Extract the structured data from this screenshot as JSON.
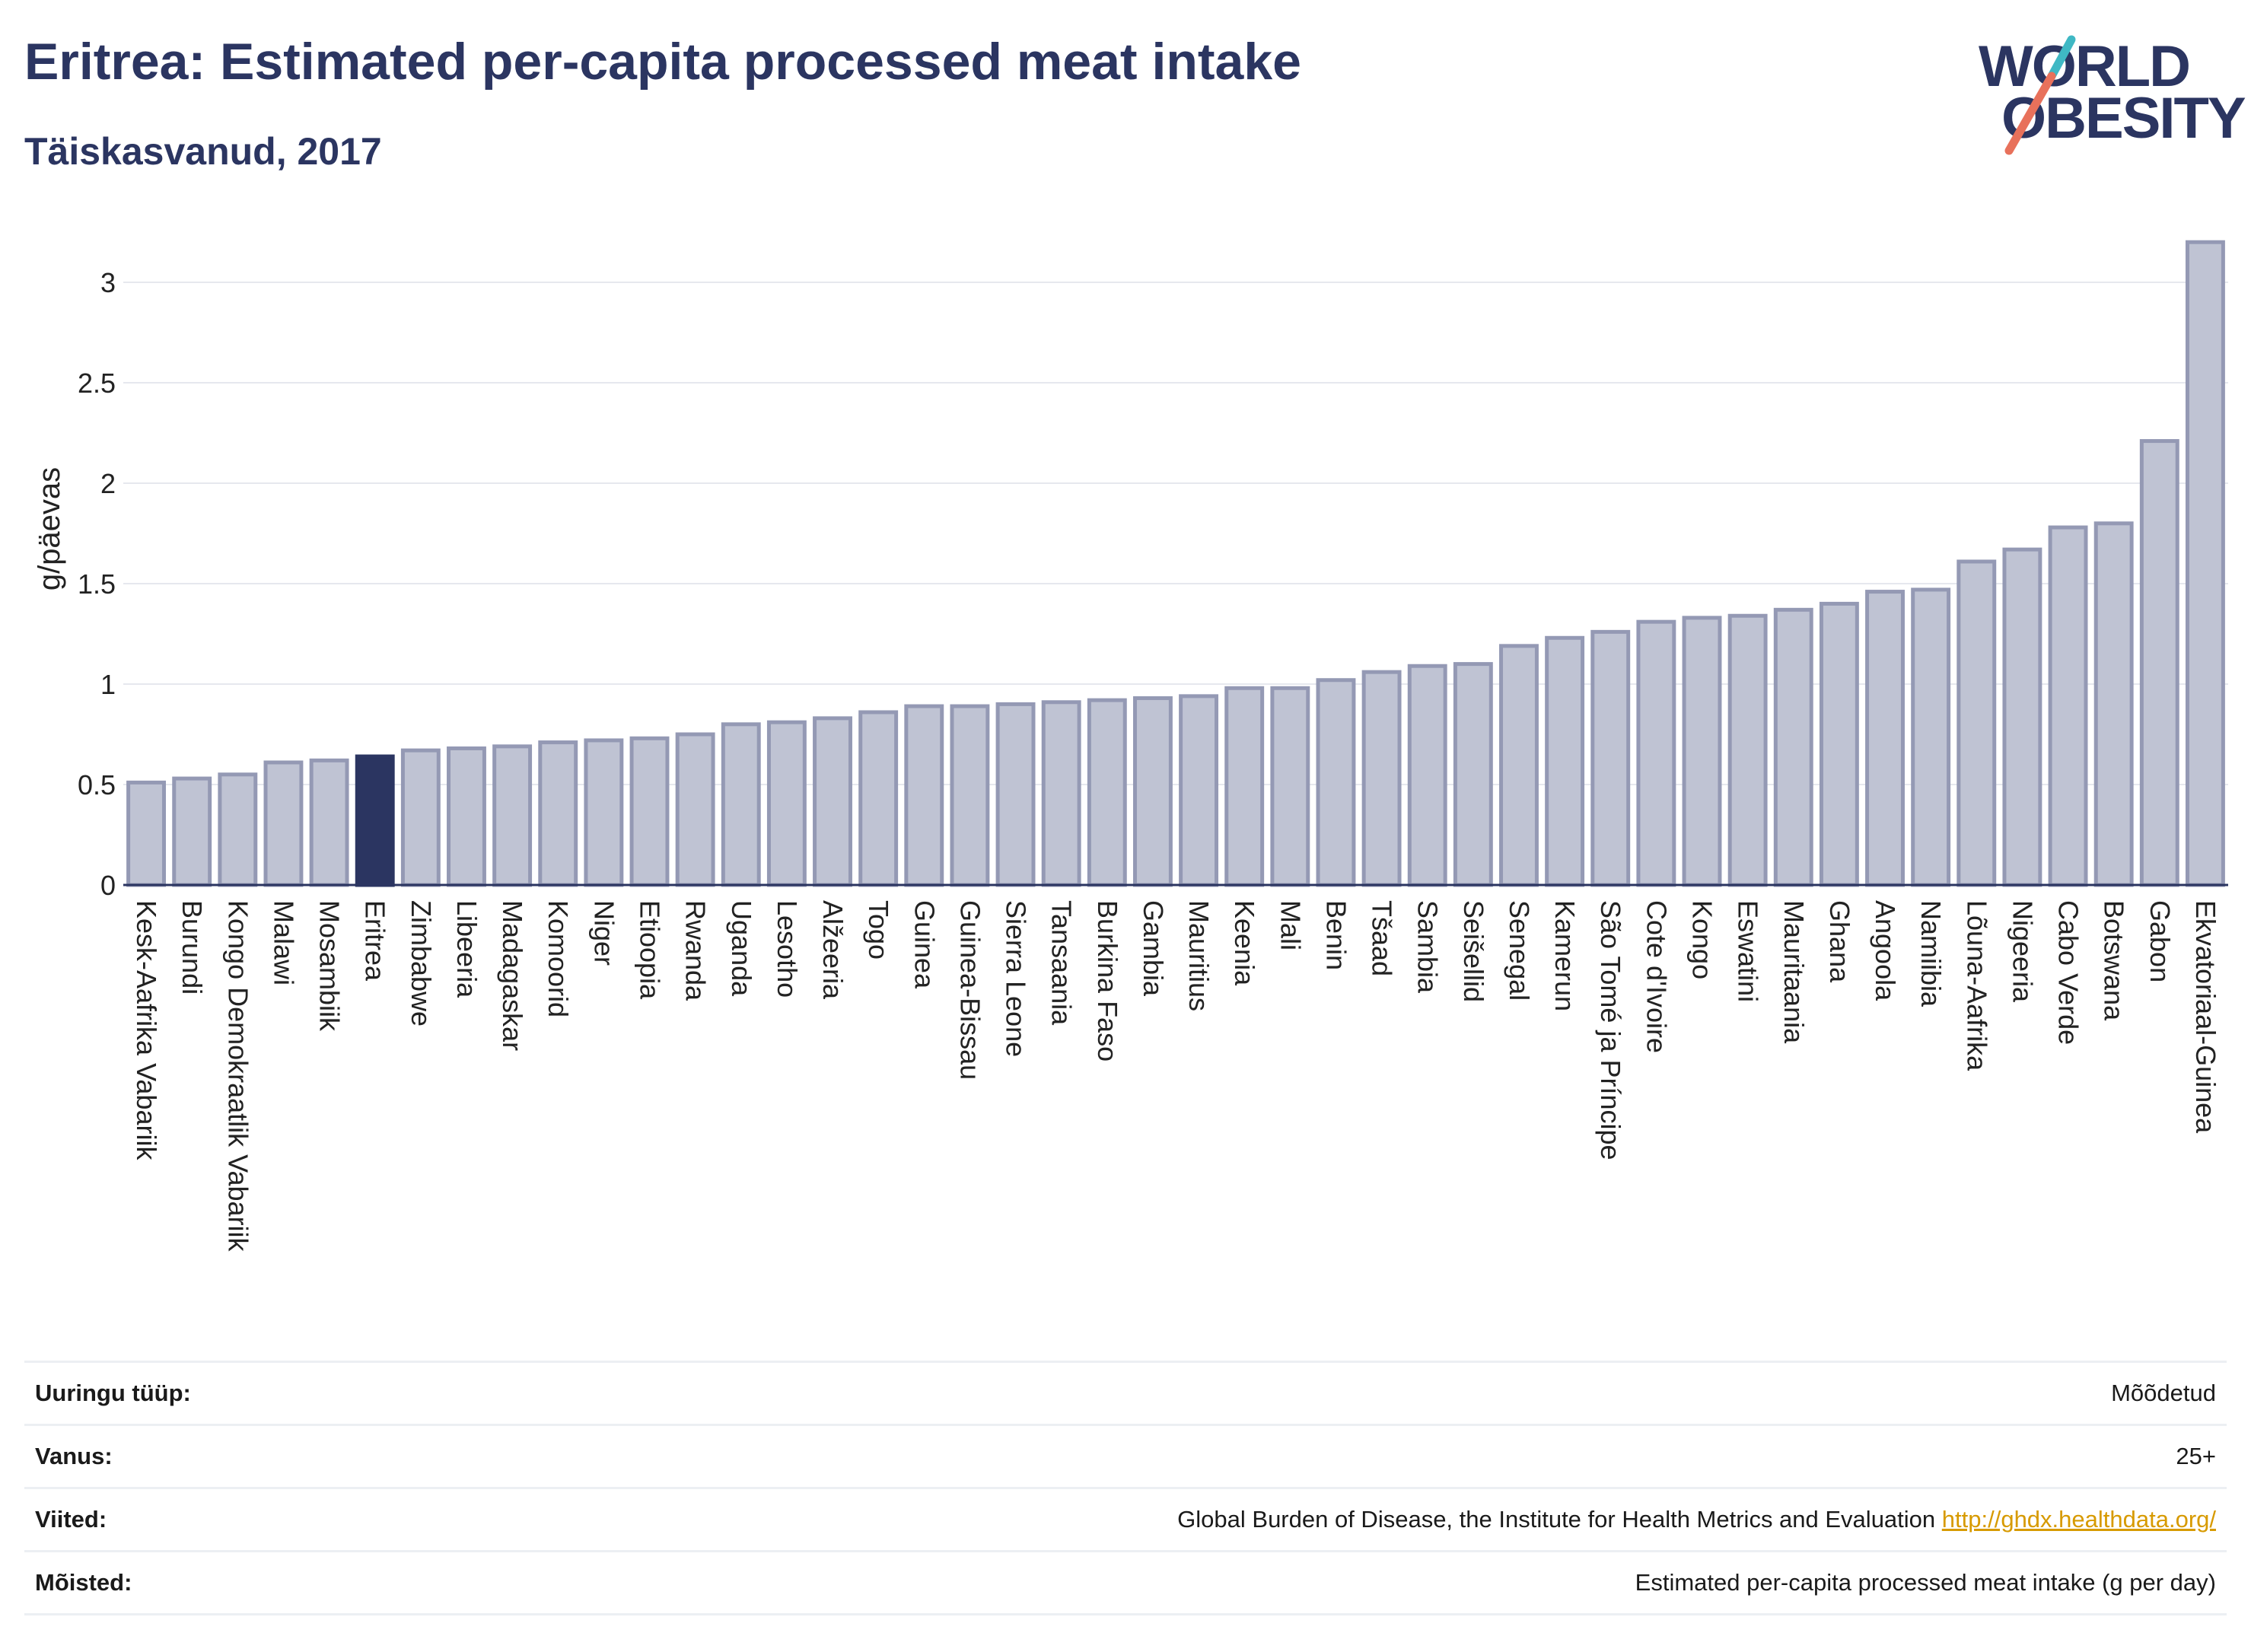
{
  "header": {
    "title": "Eritrea: Estimated per-capita processed meat intake",
    "subtitle": "Täiskasvanud, 2017"
  },
  "logo": {
    "line1": "WORLD",
    "line2": "OBESITY",
    "slash_colors": [
      "#e8715b",
      "#3fb8c4"
    ]
  },
  "chart_data": {
    "type": "bar",
    "title": "Eritrea: Estimated per-capita processed meat intake",
    "subtitle": "Täiskasvanud, 2017",
    "ylabel": "g/päevas",
    "ylim": [
      0,
      3.3
    ],
    "yticks": [
      0,
      0.5,
      1,
      1.5,
      2,
      2.5,
      3
    ],
    "ytick_labels": [
      "0",
      "0.5",
      "1",
      "1.5",
      "2",
      "2.5",
      "3"
    ],
    "grid": true,
    "highlight": "Eritrea",
    "colors": {
      "bar": "#bfc3d3",
      "bar_edge": "#9499b4",
      "highlight": "#2b3561"
    },
    "categories": [
      "Kesk-Aafrika Vabariik",
      "Burundi",
      "Kongo Demokraatlik Vabariik",
      "Malawi",
      "Mosambiik",
      "Eritrea",
      "Zimbabwe",
      "Libeeria",
      "Madagaskar",
      "Komoorid",
      "Niger",
      "Etioopia",
      "Rwanda",
      "Uganda",
      "Lesotho",
      "Alžeeria",
      "Togo",
      "Guinea",
      "Guinea-Bissau",
      "Sierra Leone",
      "Tansaania",
      "Burkina Faso",
      "Gambia",
      "Mauritius",
      "Keenia",
      "Mali",
      "Benin",
      "Tšaad",
      "Sambia",
      "Seišellid",
      "Senegal",
      "Kamerun",
      "São Tomé ja Príncipe",
      "Cote d'Ivoire",
      "Kongo",
      "Eswatini",
      "Mauritaania",
      "Ghana",
      "Angoola",
      "Namiibia",
      "Lõuna-Aafrika",
      "Nigeeria",
      "Cabo Verde",
      "Botswana",
      "Gabon",
      "Ekvatoriaal-Guinea"
    ],
    "values": [
      0.51,
      0.53,
      0.55,
      0.61,
      0.62,
      0.64,
      0.67,
      0.68,
      0.69,
      0.71,
      0.72,
      0.73,
      0.75,
      0.8,
      0.81,
      0.83,
      0.86,
      0.89,
      0.89,
      0.9,
      0.91,
      0.92,
      0.93,
      0.94,
      0.98,
      0.98,
      1.02,
      1.06,
      1.09,
      1.1,
      1.19,
      1.23,
      1.26,
      1.31,
      1.33,
      1.34,
      1.37,
      1.4,
      1.46,
      1.47,
      1.61,
      1.67,
      1.78,
      1.8,
      2.21,
      3.2
    ]
  },
  "info_table": [
    {
      "label": "Uuringu tüüp:",
      "value": "Mõõdetud"
    },
    {
      "label": "Vanus:",
      "value": "25+"
    },
    {
      "label": "Viited:",
      "value": "Global Burden of Disease, the Institute for Health Metrics and Evaluation",
      "link": "http://ghdx.healthdata.org/"
    },
    {
      "label": "Mõisted:",
      "value": "Estimated per-capita processed meat intake (g per day)"
    }
  ]
}
